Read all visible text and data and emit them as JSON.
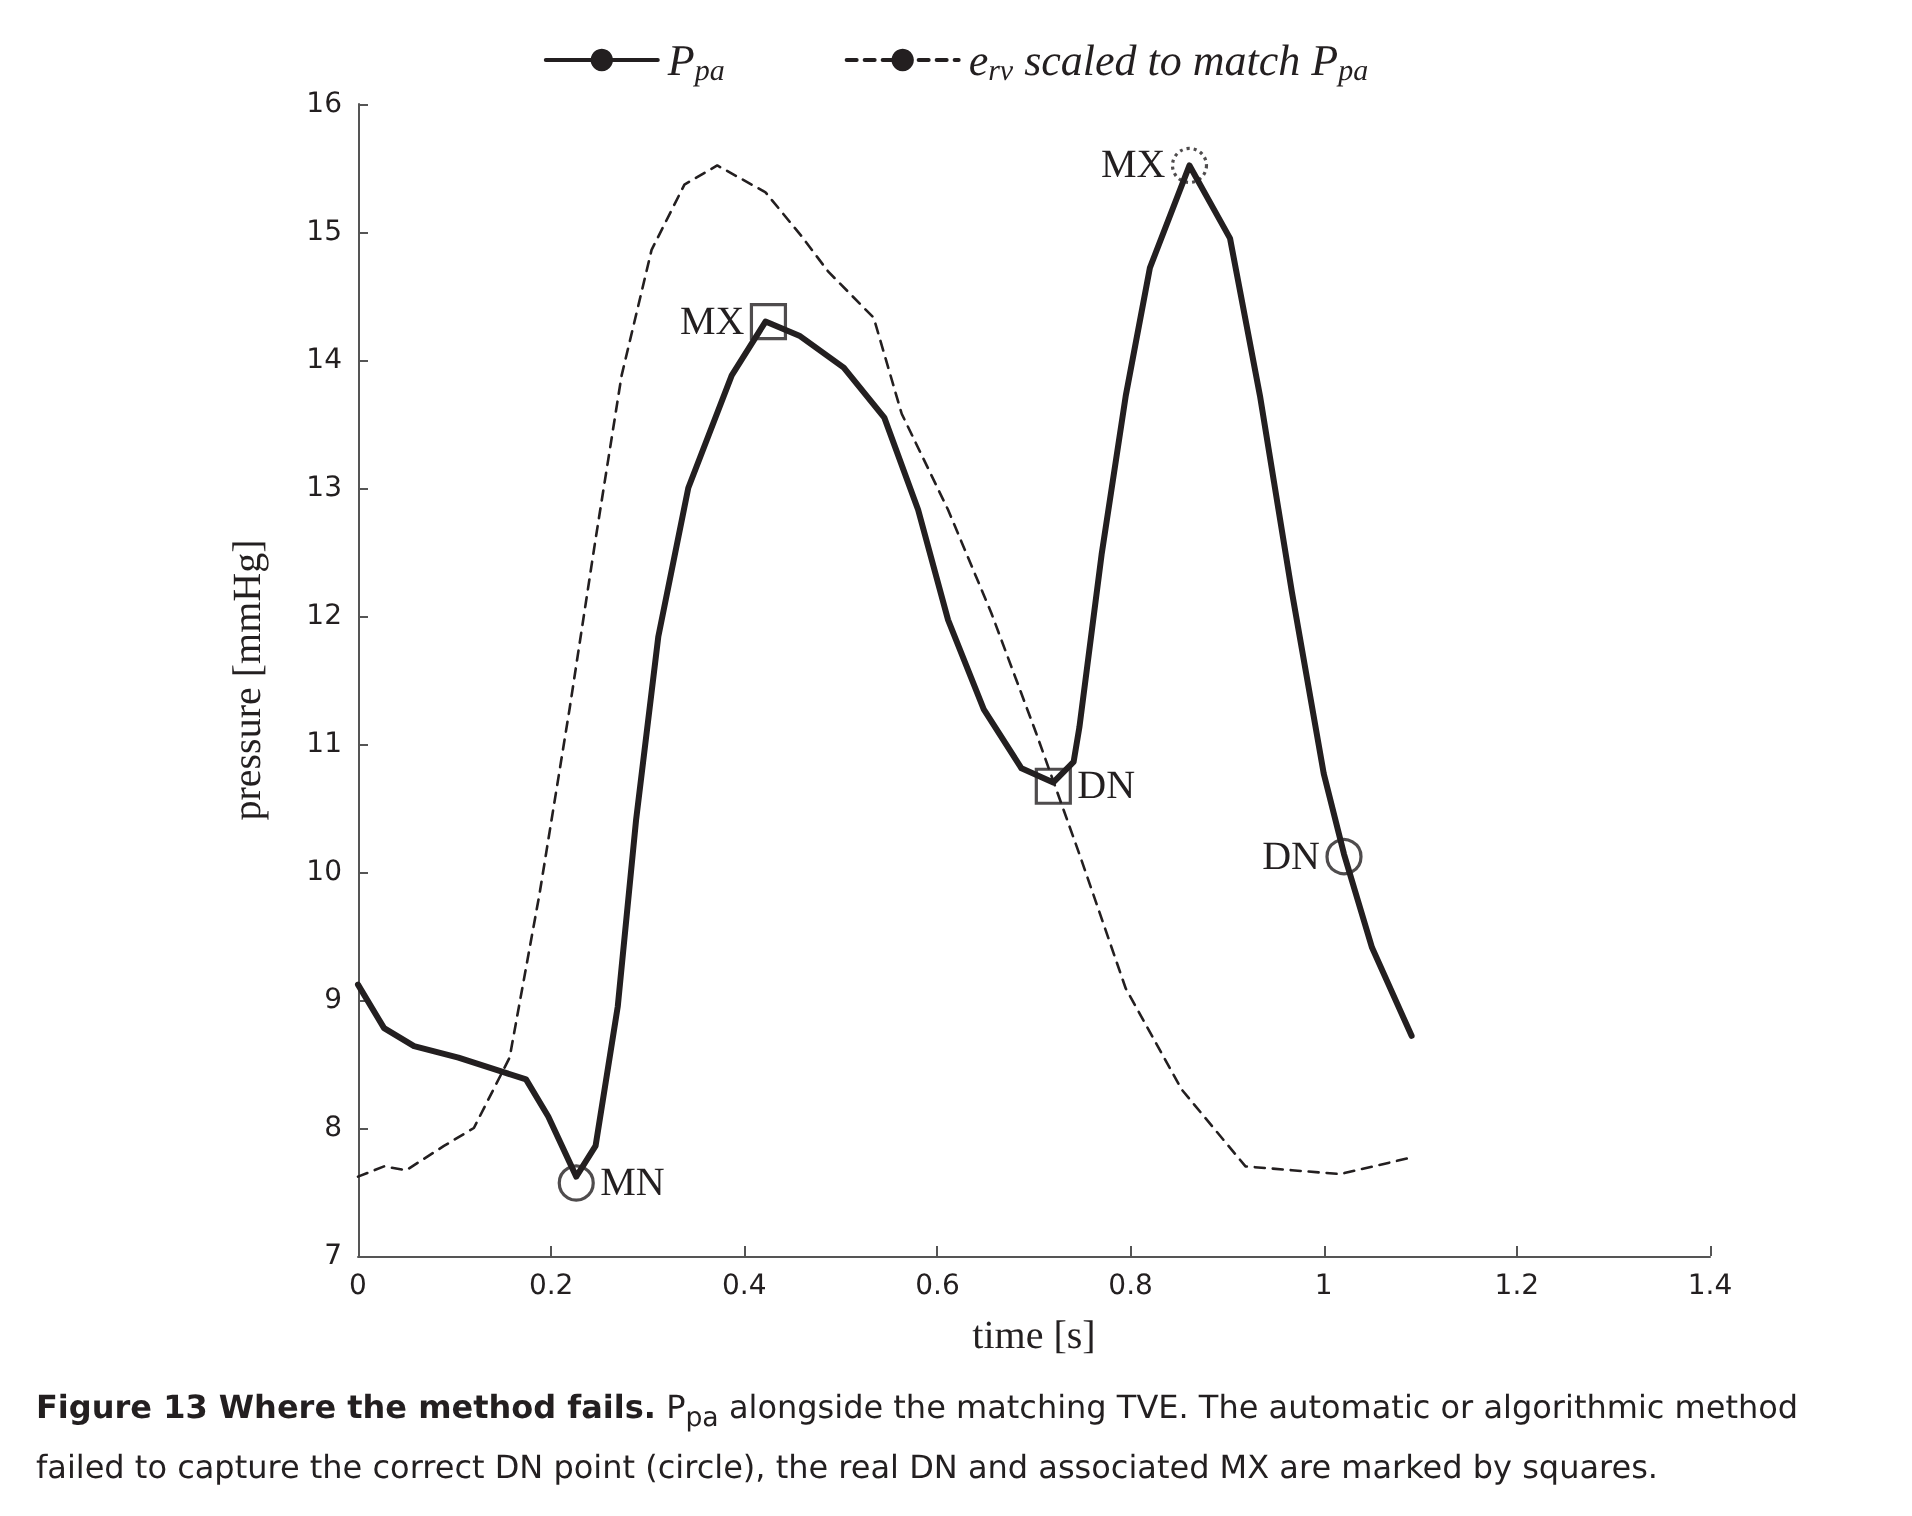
{
  "chart_data": {
    "type": "line",
    "xlabel": "time [s]",
    "ylabel": "pressure [mmHg]",
    "xlim": [
      0,
      1.4
    ],
    "xticks": [
      0,
      0.2,
      0.4,
      0.6,
      0.8,
      1,
      1.2,
      1.4
    ],
    "ylim": [
      7,
      16
    ],
    "yticks": [
      7,
      8,
      9,
      10,
      11,
      12,
      13,
      14,
      15,
      16
    ],
    "legend": "top",
    "marker": "none",
    "grid": false,
    "series": [
      {
        "name": "P$_{pa}$",
        "color": "#231f20",
        "line_style": "solid",
        "x": [
          0,
          0.027,
          0.058,
          0.104,
          0.149,
          0.174,
          0.197,
          0.226,
          0.246,
          0.269,
          0.288,
          0.311,
          0.342,
          0.387,
          0.422,
          0.457,
          0.503,
          0.545,
          0.58,
          0.611,
          0.648,
          0.687,
          0.72,
          0.741,
          0.747,
          0.77,
          0.795,
          0.82,
          0.861,
          0.903,
          0.934,
          0.967,
          1.0,
          1.021,
          1.05,
          1.091
        ],
        "values": [
          9.12,
          8.78,
          8.64,
          8.55,
          8.44,
          8.38,
          8.09,
          7.62,
          7.86,
          8.95,
          10.41,
          11.84,
          13.0,
          13.88,
          14.3,
          14.19,
          13.94,
          13.55,
          12.83,
          11.97,
          11.27,
          10.81,
          10.7,
          10.86,
          11.13,
          12.48,
          13.72,
          14.72,
          15.52,
          14.95,
          13.72,
          12.19,
          10.77,
          10.14,
          9.41,
          8.72
        ]
      },
      {
        "name": "e$_{rv}$ scaled to match P$_{pa}$",
        "color": "#231f20",
        "line_style": "dashed",
        "x": [
          0,
          0.027,
          0.05,
          0.089,
          0.12,
          0.157,
          0.188,
          0.219,
          0.246,
          0.273,
          0.304,
          0.338,
          0.372,
          0.422,
          0.459,
          0.487,
          0.534,
          0.563,
          0.611,
          0.656,
          0.702,
          0.747,
          0.795,
          0.853,
          0.919,
          0.967,
          1.017,
          1.091
        ],
        "values": [
          7.62,
          7.7,
          7.67,
          7.86,
          8.0,
          8.55,
          9.83,
          11.27,
          12.6,
          13.88,
          14.86,
          15.37,
          15.52,
          15.31,
          14.97,
          14.69,
          14.33,
          13.58,
          12.83,
          12.02,
          11.09,
          10.14,
          9.09,
          8.3,
          7.7,
          7.67,
          7.64,
          7.77
        ]
      },
      {
        "type": "scatter",
        "marker": "circle",
        "color": "#231f20",
        "line_style": "solid",
        "x": [
          0.226,
          1.021
        ],
        "values": [
          7.57,
          10.12
        ]
      },
      {
        "type": "scatter",
        "marker": "square",
        "color": "#231f20",
        "line_style": "solid",
        "x": [
          0.425,
          0.72
        ],
        "values": [
          14.3,
          10.67
        ]
      },
      {
        "type": "scatter",
        "marker": "circle",
        "color": "#231f20",
        "line_style": "dotted",
        "x": [
          0.861
        ],
        "values": [
          15.52
        ]
      }
    ],
    "annotations": [
      {
        "text": "MN",
        "x": 0.226,
        "y": 7.57
      },
      {
        "text": "MX",
        "x": 0.425,
        "y": 14.3
      },
      {
        "text": "DN",
        "x": 0.72,
        "y": 10.67
      },
      {
        "text": "MX",
        "x": 0.861,
        "y": 15.52
      },
      {
        "text": "DN",
        "x": 1.021,
        "y": 10.12
      },
      "Figure 13 Where the method fails. P$_{pa}$ alongside the matching TVE. The automatic or algorithmic method failed to capture the correct DN point (circle), the real DN and associated MX are marked by squares."
    ]
  }
}
